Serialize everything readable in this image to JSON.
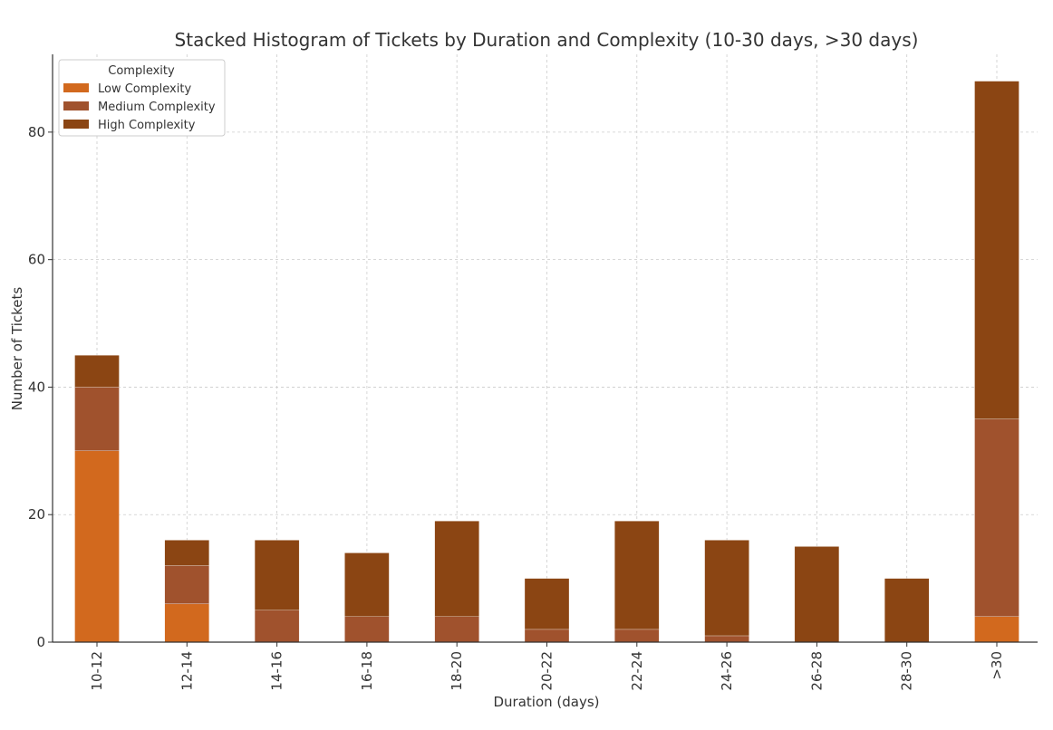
{
  "chart_data": {
    "type": "bar",
    "stacked": true,
    "title": "Stacked Histogram of Tickets by Duration and Complexity (10-30 days, >30 days)",
    "xlabel": "Duration (days)",
    "ylabel": "Number of Tickets",
    "ylim": [
      0,
      92.2
    ],
    "yticks": [
      0,
      20,
      40,
      60,
      80
    ],
    "grid": true,
    "legend": {
      "title": "Complexity",
      "placement": "top-left"
    },
    "categories": [
      "10-12",
      "12-14",
      "14-16",
      "16-18",
      "18-20",
      "20-22",
      "22-24",
      "24-26",
      "26-28",
      "28-30",
      ">30"
    ],
    "series": [
      {
        "name": "Low Complexity",
        "color": "#D2691E",
        "values": [
          30,
          6,
          0,
          0,
          0,
          0,
          0,
          0,
          0,
          0,
          4
        ]
      },
      {
        "name": "Medium Complexity",
        "color": "#A0522D",
        "values": [
          10,
          6,
          5,
          4,
          4,
          2,
          2,
          1,
          0,
          0,
          31
        ]
      },
      {
        "name": "High Complexity",
        "color": "#8B4513",
        "values": [
          5,
          4,
          11,
          10,
          15,
          8,
          17,
          15,
          15,
          10,
          53
        ]
      }
    ]
  }
}
